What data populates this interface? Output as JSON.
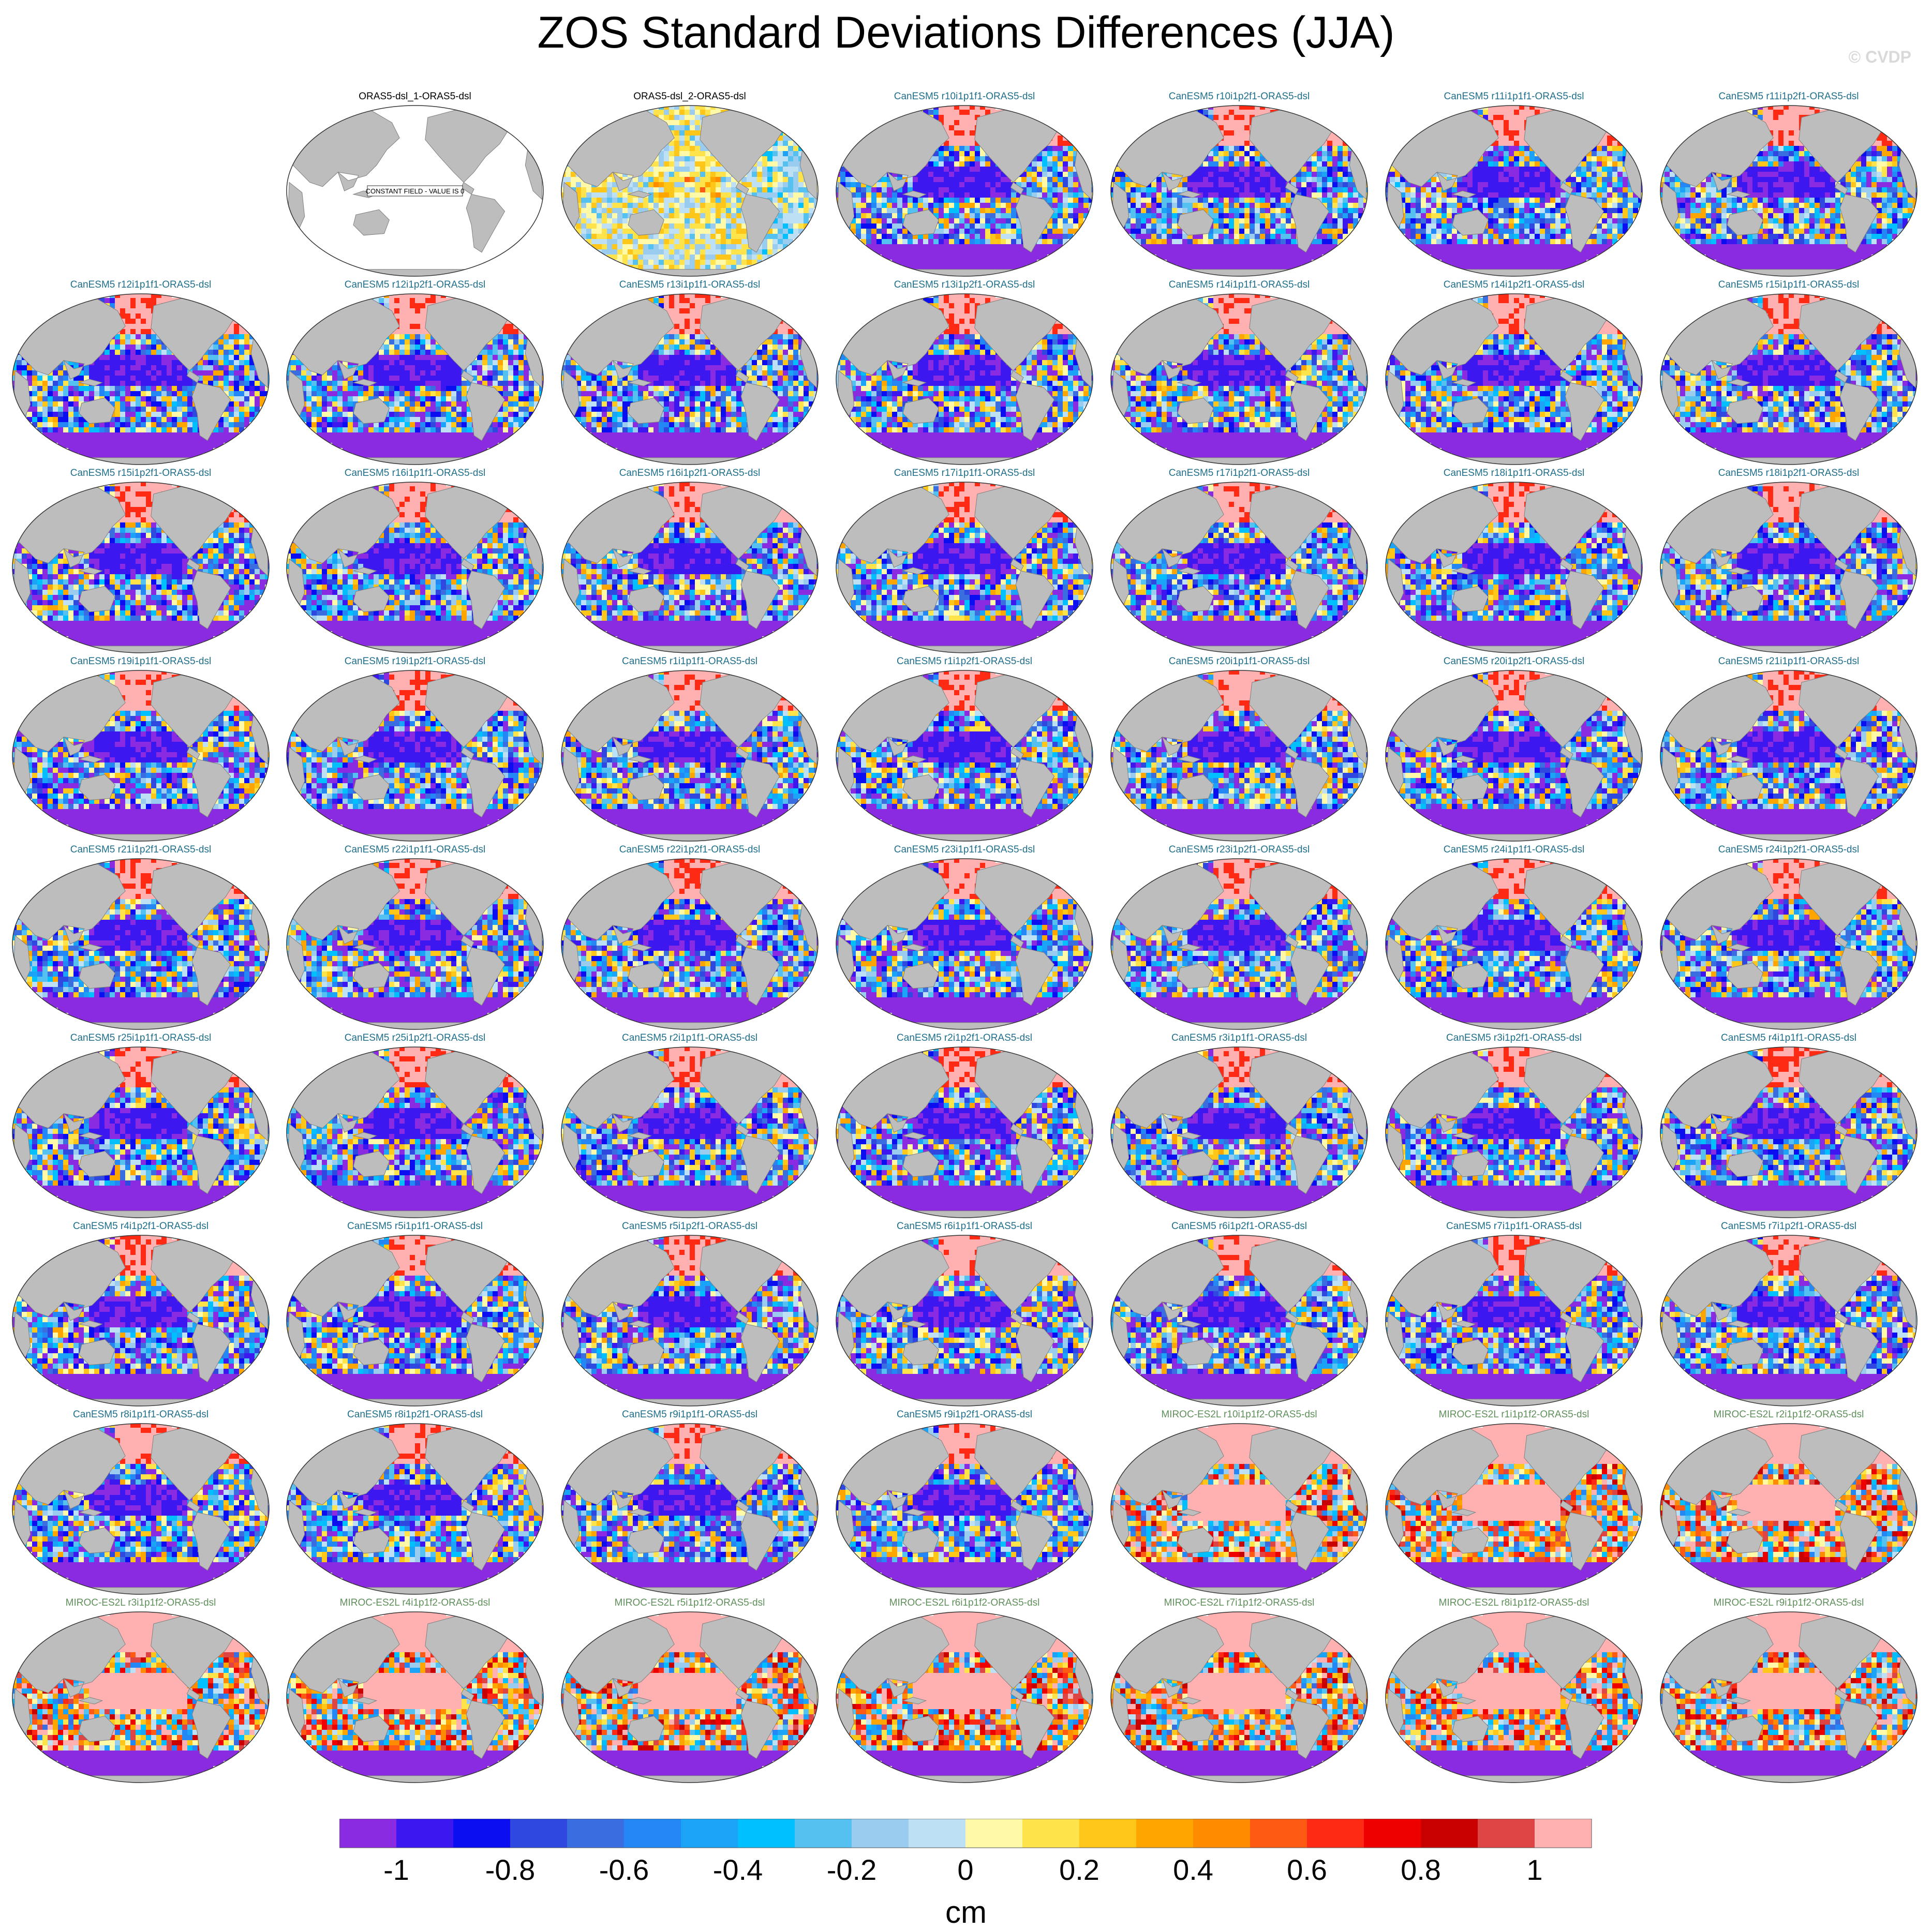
{
  "title": "ZOS Standard Deviations Differences (JJA)",
  "credit": "© CVDP",
  "colors": {
    "land": "#bdbdbd",
    "title_canesm": "#1f6f8b",
    "title_miroc": "#5f8f5a",
    "title_obs": "#000000"
  },
  "panels": [
    {
      "title": "ORAS5-dsl_1-ORAS5-dsl",
      "kind": "constant",
      "note": "CONSTANT FIELD - VALUE IS 0"
    },
    {
      "title": "ORAS5-dsl_2-ORAS5-dsl",
      "kind": "obs"
    },
    {
      "title": "CanESM5 r10i1p1f1-ORAS5-dsl",
      "kind": "canesm"
    },
    {
      "title": "CanESM5 r10i1p2f1-ORAS5-dsl",
      "kind": "canesm"
    },
    {
      "title": "CanESM5 r11i1p1f1-ORAS5-dsl",
      "kind": "canesm"
    },
    {
      "title": "CanESM5 r11i1p2f1-ORAS5-dsl",
      "kind": "canesm"
    },
    {
      "title": "CanESM5 r12i1p1f1-ORAS5-dsl",
      "kind": "canesm"
    },
    {
      "title": "CanESM5 r12i1p2f1-ORAS5-dsl",
      "kind": "canesm"
    },
    {
      "title": "CanESM5 r13i1p1f1-ORAS5-dsl",
      "kind": "canesm"
    },
    {
      "title": "CanESM5 r13i1p2f1-ORAS5-dsl",
      "kind": "canesm"
    },
    {
      "title": "CanESM5 r14i1p1f1-ORAS5-dsl",
      "kind": "canesm"
    },
    {
      "title": "CanESM5 r14i1p2f1-ORAS5-dsl",
      "kind": "canesm"
    },
    {
      "title": "CanESM5 r15i1p1f1-ORAS5-dsl",
      "kind": "canesm"
    },
    {
      "title": "CanESM5 r15i1p2f1-ORAS5-dsl",
      "kind": "canesm"
    },
    {
      "title": "CanESM5 r16i1p1f1-ORAS5-dsl",
      "kind": "canesm"
    },
    {
      "title": "CanESM5 r16i1p2f1-ORAS5-dsl",
      "kind": "canesm"
    },
    {
      "title": "CanESM5 r17i1p1f1-ORAS5-dsl",
      "kind": "canesm"
    },
    {
      "title": "CanESM5 r17i1p2f1-ORAS5-dsl",
      "kind": "canesm"
    },
    {
      "title": "CanESM5 r18i1p1f1-ORAS5-dsl",
      "kind": "canesm"
    },
    {
      "title": "CanESM5 r18i1p2f1-ORAS5-dsl",
      "kind": "canesm"
    },
    {
      "title": "CanESM5 r19i1p1f1-ORAS5-dsl",
      "kind": "canesm"
    },
    {
      "title": "CanESM5 r19i1p2f1-ORAS5-dsl",
      "kind": "canesm"
    },
    {
      "title": "CanESM5 r1i1p1f1-ORAS5-dsl",
      "kind": "canesm"
    },
    {
      "title": "CanESM5 r1i1p2f1-ORAS5-dsl",
      "kind": "canesm"
    },
    {
      "title": "CanESM5 r20i1p1f1-ORAS5-dsl",
      "kind": "canesm"
    },
    {
      "title": "CanESM5 r20i1p2f1-ORAS5-dsl",
      "kind": "canesm"
    },
    {
      "title": "CanESM5 r21i1p1f1-ORAS5-dsl",
      "kind": "canesm"
    },
    {
      "title": "CanESM5 r21i1p2f1-ORAS5-dsl",
      "kind": "canesm"
    },
    {
      "title": "CanESM5 r22i1p1f1-ORAS5-dsl",
      "kind": "canesm"
    },
    {
      "title": "CanESM5 r22i1p2f1-ORAS5-dsl",
      "kind": "canesm"
    },
    {
      "title": "CanESM5 r23i1p1f1-ORAS5-dsl",
      "kind": "canesm"
    },
    {
      "title": "CanESM5 r23i1p2f1-ORAS5-dsl",
      "kind": "canesm"
    },
    {
      "title": "CanESM5 r24i1p1f1-ORAS5-dsl",
      "kind": "canesm"
    },
    {
      "title": "CanESM5 r24i1p2f1-ORAS5-dsl",
      "kind": "canesm"
    },
    {
      "title": "CanESM5 r25i1p1f1-ORAS5-dsl",
      "kind": "canesm"
    },
    {
      "title": "CanESM5 r25i1p2f1-ORAS5-dsl",
      "kind": "canesm"
    },
    {
      "title": "CanESM5 r2i1p1f1-ORAS5-dsl",
      "kind": "canesm"
    },
    {
      "title": "CanESM5 r2i1p2f1-ORAS5-dsl",
      "kind": "canesm"
    },
    {
      "title": "CanESM5 r3i1p1f1-ORAS5-dsl",
      "kind": "canesm"
    },
    {
      "title": "CanESM5 r3i1p2f1-ORAS5-dsl",
      "kind": "canesm"
    },
    {
      "title": "CanESM5 r4i1p1f1-ORAS5-dsl",
      "kind": "canesm"
    },
    {
      "title": "CanESM5 r4i1p2f1-ORAS5-dsl",
      "kind": "canesm"
    },
    {
      "title": "CanESM5 r5i1p1f1-ORAS5-dsl",
      "kind": "canesm"
    },
    {
      "title": "CanESM5 r5i1p2f1-ORAS5-dsl",
      "kind": "canesm"
    },
    {
      "title": "CanESM5 r6i1p1f1-ORAS5-dsl",
      "kind": "canesm"
    },
    {
      "title": "CanESM5 r6i1p2f1-ORAS5-dsl",
      "kind": "canesm"
    },
    {
      "title": "CanESM5 r7i1p1f1-ORAS5-dsl",
      "kind": "canesm"
    },
    {
      "title": "CanESM5 r7i1p2f1-ORAS5-dsl",
      "kind": "canesm"
    },
    {
      "title": "CanESM5 r8i1p1f1-ORAS5-dsl",
      "kind": "canesm"
    },
    {
      "title": "CanESM5 r8i1p2f1-ORAS5-dsl",
      "kind": "canesm"
    },
    {
      "title": "CanESM5 r9i1p1f1-ORAS5-dsl",
      "kind": "canesm"
    },
    {
      "title": "CanESM5 r9i1p2f1-ORAS5-dsl",
      "kind": "canesm"
    },
    {
      "title": "MIROC-ES2L r10i1p1f2-ORAS5-dsl",
      "kind": "miroc"
    },
    {
      "title": "MIROC-ES2L r1i1p1f2-ORAS5-dsl",
      "kind": "miroc"
    },
    {
      "title": "MIROC-ES2L r2i1p1f2-ORAS5-dsl",
      "kind": "miroc"
    },
    {
      "title": "MIROC-ES2L r3i1p1f2-ORAS5-dsl",
      "kind": "miroc"
    },
    {
      "title": "MIROC-ES2L r4i1p1f2-ORAS5-dsl",
      "kind": "miroc"
    },
    {
      "title": "MIROC-ES2L r5i1p1f2-ORAS5-dsl",
      "kind": "miroc"
    },
    {
      "title": "MIROC-ES2L r6i1p1f2-ORAS5-dsl",
      "kind": "miroc"
    },
    {
      "title": "MIROC-ES2L r7i1p1f2-ORAS5-dsl",
      "kind": "miroc"
    },
    {
      "title": "MIROC-ES2L r8i1p1f2-ORAS5-dsl",
      "kind": "miroc"
    },
    {
      "title": "MIROC-ES2L r9i1p1f2-ORAS5-dsl",
      "kind": "miroc"
    }
  ],
  "chart_data": {
    "type": "heatmap",
    "title": "ZOS Standard Deviations Differences (JJA)",
    "colorbar": {
      "label": "cm",
      "levels": [
        -1.1,
        -1,
        -0.9,
        -0.8,
        -0.7,
        -0.6,
        -0.5,
        -0.4,
        -0.3,
        -0.2,
        -0.1,
        0,
        0.1,
        0.2,
        0.3,
        0.4,
        0.5,
        0.6,
        0.7,
        0.8,
        0.9,
        1,
        1.1
      ],
      "colors": [
        "#8a2be2",
        "#3d17f0",
        "#0a0ef0",
        "#2e48e0",
        "#3a6ee0",
        "#2388f5",
        "#1aa3f7",
        "#00bfff",
        "#55c1f0",
        "#99ccee",
        "#bde0f5",
        "#fff9a8",
        "#ffe34a",
        "#ffc61a",
        "#ffa500",
        "#ff8c00",
        "#ff5a14",
        "#ff2a14",
        "#ee0000",
        "#c90000",
        "#dd4444",
        "#ffb1b1"
      ],
      "tick_labels": [
        "-1",
        "-0.8",
        "-0.6",
        "-0.4",
        "-0.2",
        "0",
        "0.2",
        "0.4",
        "0.6",
        "0.8",
        "1"
      ],
      "tick_values": [
        -1,
        -0.8,
        -0.6,
        -0.4,
        -0.2,
        0,
        0.2,
        0.4,
        0.6,
        0.8,
        1
      ]
    }
  }
}
